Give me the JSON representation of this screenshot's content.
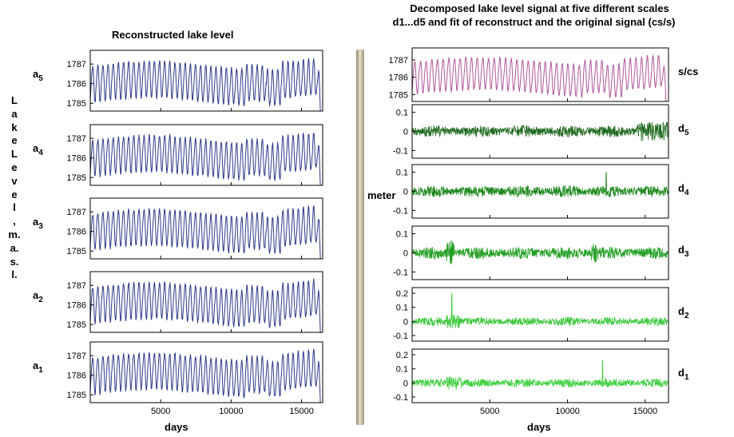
{
  "chart_data": [
    {
      "type": "line",
      "title": "Reconstructed lake level",
      "ylabel": "L a k e L e v e l , m. a. s. l.",
      "xlabel": "days",
      "xlim": [
        0,
        16500
      ],
      "xticks": [
        "5000",
        "10000",
        "15000"
      ],
      "color": "#2e3a8c",
      "series": [
        {
          "name": "a5",
          "sub": "5",
          "ylim": [
            1784.6,
            1787.7
          ],
          "yticks": [
            "1787",
            "1786",
            "1785"
          ]
        },
        {
          "name": "a4",
          "sub": "4",
          "ylim": [
            1784.6,
            1787.7
          ],
          "yticks": [
            "1787",
            "1786",
            "1785"
          ]
        },
        {
          "name": "a3",
          "sub": "3",
          "ylim": [
            1784.6,
            1787.7
          ],
          "yticks": [
            "1787",
            "1786",
            "1785"
          ]
        },
        {
          "name": "a2",
          "sub": "2",
          "ylim": [
            1784.6,
            1787.7
          ],
          "yticks": [
            "1787",
            "1786",
            "1785"
          ]
        },
        {
          "name": "a1",
          "sub": "1",
          "ylim": [
            1784.6,
            1787.7
          ],
          "yticks": [
            "1787",
            "1786",
            "1785"
          ]
        }
      ]
    },
    {
      "type": "line",
      "title_line1": "Decomposed lake level signal at five different scales",
      "title_line2": "d1...d5 and fit of reconstruct and the original signal (cs/s)",
      "ylabel": "meter",
      "xlabel": "days",
      "xlim": [
        0,
        16500
      ],
      "xticks": [
        "5000",
        "10000",
        "15000"
      ],
      "series": [
        {
          "name": "s/cs",
          "sub": "",
          "color": "#b0579a",
          "ylim": [
            1784.6,
            1787.7
          ],
          "yticks": [
            "1787",
            "1786",
            "1785"
          ]
        },
        {
          "name": "d5",
          "sub": "5",
          "color": "#1f6a1f",
          "ylim": [
            -0.14,
            0.14
          ],
          "yticks": [
            "0.1",
            "0",
            "-0.1"
          ]
        },
        {
          "name": "d4",
          "sub": "4",
          "color": "#1f8a1f",
          "ylim": [
            -0.14,
            0.14
          ],
          "yticks": [
            "0.1",
            "0",
            "-0.1"
          ]
        },
        {
          "name": "d3",
          "sub": "3",
          "color": "#24a024",
          "ylim": [
            -0.14,
            0.14
          ],
          "yticks": [
            "0.1",
            "0",
            "-0.1"
          ]
        },
        {
          "name": "d2",
          "sub": "2",
          "color": "#3cc83c",
          "ylim": [
            -0.14,
            0.24
          ],
          "yticks": [
            "0.2",
            "0.1",
            "0",
            "-0.1"
          ]
        },
        {
          "name": "d1",
          "sub": "1",
          "color": "#40d040",
          "ylim": [
            -0.14,
            0.24
          ],
          "yticks": [
            "0.2",
            "0.1",
            "0",
            "-0.1"
          ]
        }
      ]
    }
  ]
}
